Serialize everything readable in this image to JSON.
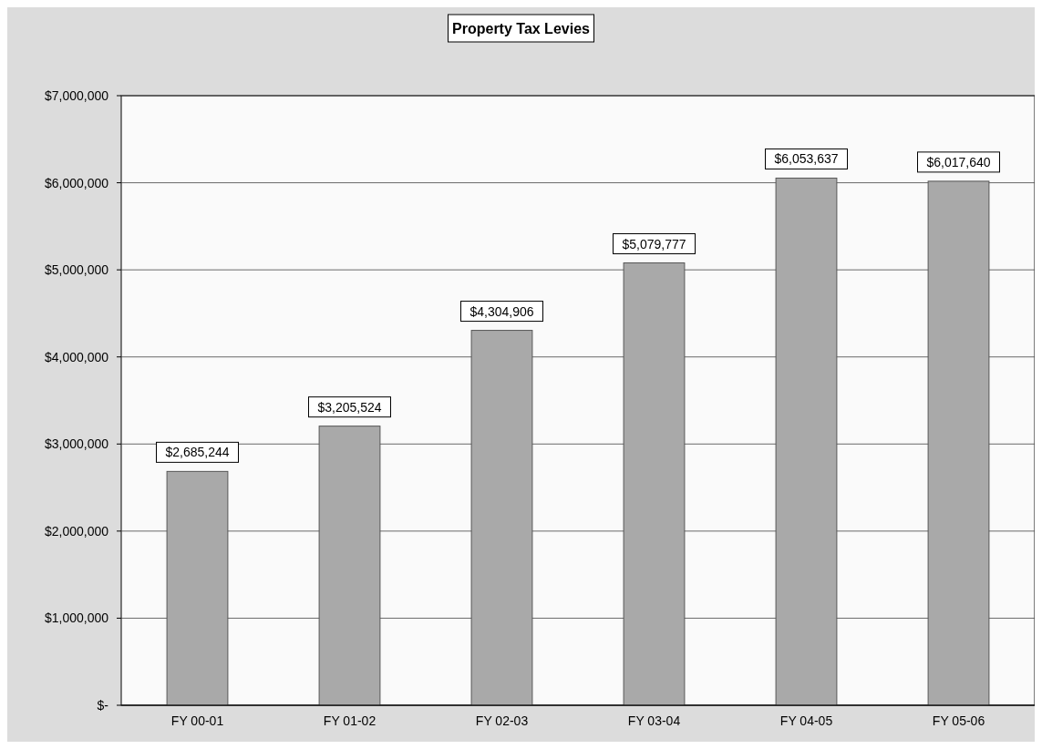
{
  "chart_data": {
    "type": "bar",
    "title": "Property Tax Levies",
    "categories": [
      "FY 00-01",
      "FY 01-02",
      "FY 02-03",
      "FY 03-04",
      "FY 04-05",
      "FY 05-06"
    ],
    "values": [
      2685244,
      3205524,
      4304906,
      5079777,
      6053637,
      6017640
    ],
    "value_labels": [
      "$2,685,244",
      "$3,205,524",
      "$4,304,906",
      "$5,079,777",
      "$6,053,637",
      "$6,017,640"
    ],
    "color": "#a9a9a9",
    "ylim": [
      0,
      7000000
    ],
    "yticks": [
      {
        "value": 0,
        "label": "$-"
      },
      {
        "value": 1000000,
        "label": "$1,000,000"
      },
      {
        "value": 2000000,
        "label": "$2,000,000"
      },
      {
        "value": 3000000,
        "label": "$3,000,000"
      },
      {
        "value": 4000000,
        "label": "$4,000,000"
      },
      {
        "value": 5000000,
        "label": "$5,000,000"
      },
      {
        "value": 6000000,
        "label": "$6,000,000"
      },
      {
        "value": 7000000,
        "label": "$7,000,000"
      }
    ],
    "grid": "y"
  }
}
